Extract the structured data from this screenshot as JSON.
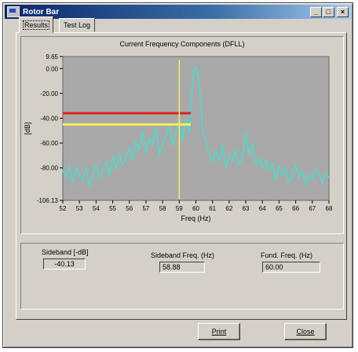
{
  "window": {
    "title": "Rotor Bar",
    "min_glyph": "_",
    "max_glyph": "□",
    "close_glyph": "×"
  },
  "tabs": [
    {
      "label": "Results",
      "active": true
    },
    {
      "label": "Test Log",
      "active": false
    }
  ],
  "chart_data": {
    "type": "line",
    "title": "Current Frequency Components (DFLL)",
    "xlabel": "Freq (Hz)",
    "ylabel": "[dB]",
    "xlim": [
      52,
      68
    ],
    "ylim": [
      -106.13,
      9.65
    ],
    "x_ticks": [
      "52",
      "53",
      "54",
      "55",
      "56",
      "57",
      "58",
      "59",
      "60",
      "61",
      "62",
      "63",
      "64",
      "65",
      "66",
      "67",
      "68"
    ],
    "y_ticks": [
      {
        "value": 9.65,
        "label": "9.65"
      },
      {
        "value": 0,
        "label": "0.00"
      },
      {
        "value": -20,
        "label": "-20.00"
      },
      {
        "value": -40,
        "label": "-40.00"
      },
      {
        "value": -60,
        "label": "-60.00"
      },
      {
        "value": -80,
        "label": "-80.00"
      },
      {
        "value": -106.13,
        "label": "-106.13"
      }
    ],
    "grid": false,
    "colors": {
      "plot_bg": "#a9a9a9",
      "spectrum": "#5fd2c4",
      "red_line": "#e2211c",
      "yellow_line": "#f2f05a"
    },
    "series": [
      {
        "x": [
          52.0,
          52.2,
          52.4,
          52.6,
          52.8,
          53.0,
          53.2,
          53.4,
          53.6,
          53.8,
          54.0,
          54.2,
          54.4,
          54.6,
          54.8,
          55.0,
          55.2,
          55.4,
          55.6,
          55.8,
          56.0,
          56.2,
          56.4,
          56.6,
          56.8,
          57.0,
          57.2,
          57.4,
          57.6,
          57.8,
          58.0,
          58.2,
          58.4,
          58.6,
          58.8,
          59.0,
          59.2,
          59.4,
          59.6,
          59.7,
          59.8,
          59.9,
          60.0,
          60.1,
          60.2,
          60.3,
          60.4,
          60.6,
          60.8,
          61.0,
          61.2,
          61.4,
          61.6,
          61.8,
          62.0,
          62.2,
          62.4,
          62.6,
          62.8,
          63.0,
          63.2,
          63.4,
          63.6,
          63.8,
          64.0,
          64.2,
          64.4,
          64.6,
          64.8,
          65.0,
          65.2,
          65.4,
          65.6,
          65.8,
          66.0,
          66.2,
          66.4,
          66.6,
          66.8,
          67.0,
          67.2,
          67.4,
          67.6,
          67.8,
          68.0
        ],
        "values": [
          -82,
          -88,
          -78,
          -92,
          -80,
          -86,
          -90,
          -79,
          -95,
          -84,
          -77,
          -88,
          -82,
          -75,
          -86,
          -70,
          -82,
          -68,
          -78,
          -72,
          -63,
          -74,
          -58,
          -66,
          -50,
          -68,
          -56,
          -62,
          -48,
          -70,
          -60,
          -54,
          -46,
          -62,
          -50,
          -45,
          -58,
          -40,
          -52,
          -30,
          -12,
          0,
          2,
          -4,
          -14,
          -30,
          -48,
          -60,
          -68,
          -76,
          -66,
          -74,
          -62,
          -80,
          -70,
          -75,
          -65,
          -78,
          -71,
          -52,
          -70,
          -60,
          -78,
          -72,
          -80,
          -74,
          -82,
          -76,
          -90,
          -78,
          -86,
          -80,
          -92,
          -84,
          -78,
          -88,
          -82,
          -94,
          -85,
          -90,
          -80,
          -86,
          -92,
          -84,
          -88
        ]
      }
    ],
    "h_lines": [
      {
        "y": -36,
        "x_start": 52,
        "x_end": 59.7,
        "color": "red"
      },
      {
        "y": -45,
        "x_start": 52,
        "x_end": 59.7,
        "color": "yellow"
      }
    ],
    "v_line": {
      "x": 59.0,
      "color": "yellow"
    }
  },
  "results": {
    "sideband_db": {
      "label": "Sideband [-dB]",
      "value": "-40.13"
    },
    "sideband_freq": {
      "label": "Sideband Freq. (Hz)",
      "value": "58.88"
    },
    "fund_freq": {
      "label": "Fund. Freq. (Hz)",
      "value": "60.00"
    }
  },
  "buttons": {
    "print": "Print",
    "close": "Close"
  }
}
